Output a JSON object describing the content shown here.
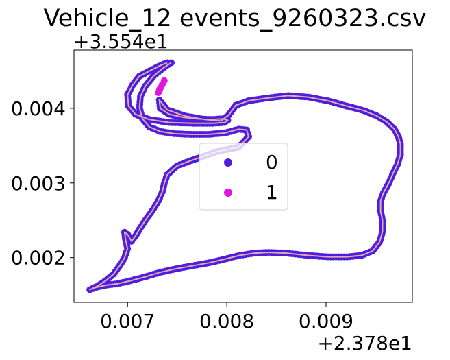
{
  "chart_data": {
    "type": "scatter",
    "title": "Vehicle_12 events_9260323.csv",
    "x_offset_label": "+2.378e1",
    "y_offset_label": "+3.554e1",
    "x_offset": 23.78,
    "y_offset": 35.54,
    "xlim": [
      0.00646,
      0.00987
    ],
    "ylim": [
      0.0014,
      0.00478
    ],
    "x_ticks": [
      0.007,
      0.008,
      0.009
    ],
    "x_tick_labels": [
      "0.007",
      "0.008",
      "0.009"
    ],
    "y_ticks": [
      0.002,
      0.003,
      0.004
    ],
    "y_tick_labels": [
      "0.002",
      "0.003",
      "0.004"
    ],
    "grid": false,
    "legend_placement": "center",
    "line_color": "#e8a9a2",
    "series": [
      {
        "name": "0",
        "color": "#4b1ee0",
        "x": [
          0.0074,
          0.00734,
          0.00725,
          0.00712,
          0.00705,
          0.007,
          0.00701,
          0.00708,
          0.00722,
          0.00742,
          0.00766,
          0.00786,
          0.00798,
          0.00801,
          0.00796,
          0.00784,
          0.0077,
          0.00756,
          0.00742,
          0.00733,
          0.00732,
          0.0074,
          0.00757,
          0.00778,
          0.00794,
          0.00802,
          0.00809,
          0.00822,
          0.00842,
          0.00862,
          0.00882,
          0.00902,
          0.00921,
          0.00938,
          0.00951,
          0.00961,
          0.00969,
          0.00973,
          0.00975,
          0.00975,
          0.00972,
          0.00967,
          0.00963,
          0.00958,
          0.00955,
          0.00955,
          0.00957,
          0.00957,
          0.00954,
          0.00947,
          0.00936,
          0.00921,
          0.00902,
          0.00881,
          0.0086,
          0.00842,
          0.00828,
          0.00813,
          0.00798,
          0.00782,
          0.00765,
          0.00749,
          0.00732,
          0.00717,
          0.00703,
          0.0069,
          0.00678,
          0.00668,
          0.00662,
          0.0067,
          0.00679,
          0.00686,
          0.00692,
          0.00697,
          0.007,
          0.00698,
          0.00697,
          0.007,
          0.00704,
          0.00708,
          0.00712,
          0.00718,
          0.00725,
          0.00731,
          0.00735,
          0.00737,
          0.0074,
          0.00745,
          0.0075,
          0.00762,
          0.00775,
          0.0079,
          0.00812,
          0.00822,
          0.0082,
          0.00812,
          0.00798,
          0.00781,
          0.00764,
          0.00747,
          0.00733,
          0.00722,
          0.00715,
          0.00712,
          0.00713,
          0.00718,
          0.00726,
          0.00736,
          0.00744
        ],
        "y": [
          0.00461,
          0.00458,
          0.00452,
          0.00443,
          0.00431,
          0.00418,
          0.00403,
          0.00392,
          0.00385,
          0.00381,
          0.0038,
          0.0038,
          0.00381,
          0.00384,
          0.00386,
          0.00385,
          0.00386,
          0.00388,
          0.00392,
          0.004,
          0.00411,
          0.00398,
          0.0039,
          0.00385,
          0.00383,
          0.00391,
          0.00404,
          0.0041,
          0.00414,
          0.00417,
          0.00415,
          0.0041,
          0.00403,
          0.00397,
          0.0039,
          0.00382,
          0.00372,
          0.00362,
          0.00352,
          0.00338,
          0.00325,
          0.00311,
          0.00299,
          0.00287,
          0.00276,
          0.00262,
          0.0025,
          0.00235,
          0.00221,
          0.00209,
          0.00203,
          0.00201,
          0.00201,
          0.00203,
          0.00206,
          0.00207,
          0.00206,
          0.00203,
          0.00198,
          0.00193,
          0.00189,
          0.00185,
          0.0018,
          0.00174,
          0.00169,
          0.00165,
          0.00163,
          0.0016,
          0.00157,
          0.00162,
          0.0017,
          0.00178,
          0.00189,
          0.002,
          0.00212,
          0.00224,
          0.00234,
          0.00231,
          0.00222,
          0.00229,
          0.00238,
          0.0025,
          0.00263,
          0.00276,
          0.00288,
          0.00299,
          0.00311,
          0.00317,
          0.00323,
          0.00329,
          0.00335,
          0.00342,
          0.00348,
          0.00362,
          0.00371,
          0.00372,
          0.00367,
          0.00365,
          0.00365,
          0.00366,
          0.00369,
          0.00375,
          0.00386,
          0.00401,
          0.00416,
          0.0043,
          0.00443,
          0.00454,
          0.00461
        ]
      },
      {
        "name": "1",
        "color": "#df17dc",
        "x": [
          0.00731,
          0.00733,
          0.00735,
          0.00737
        ],
        "y": [
          0.00421,
          0.00427,
          0.00432,
          0.00437
        ]
      }
    ]
  }
}
